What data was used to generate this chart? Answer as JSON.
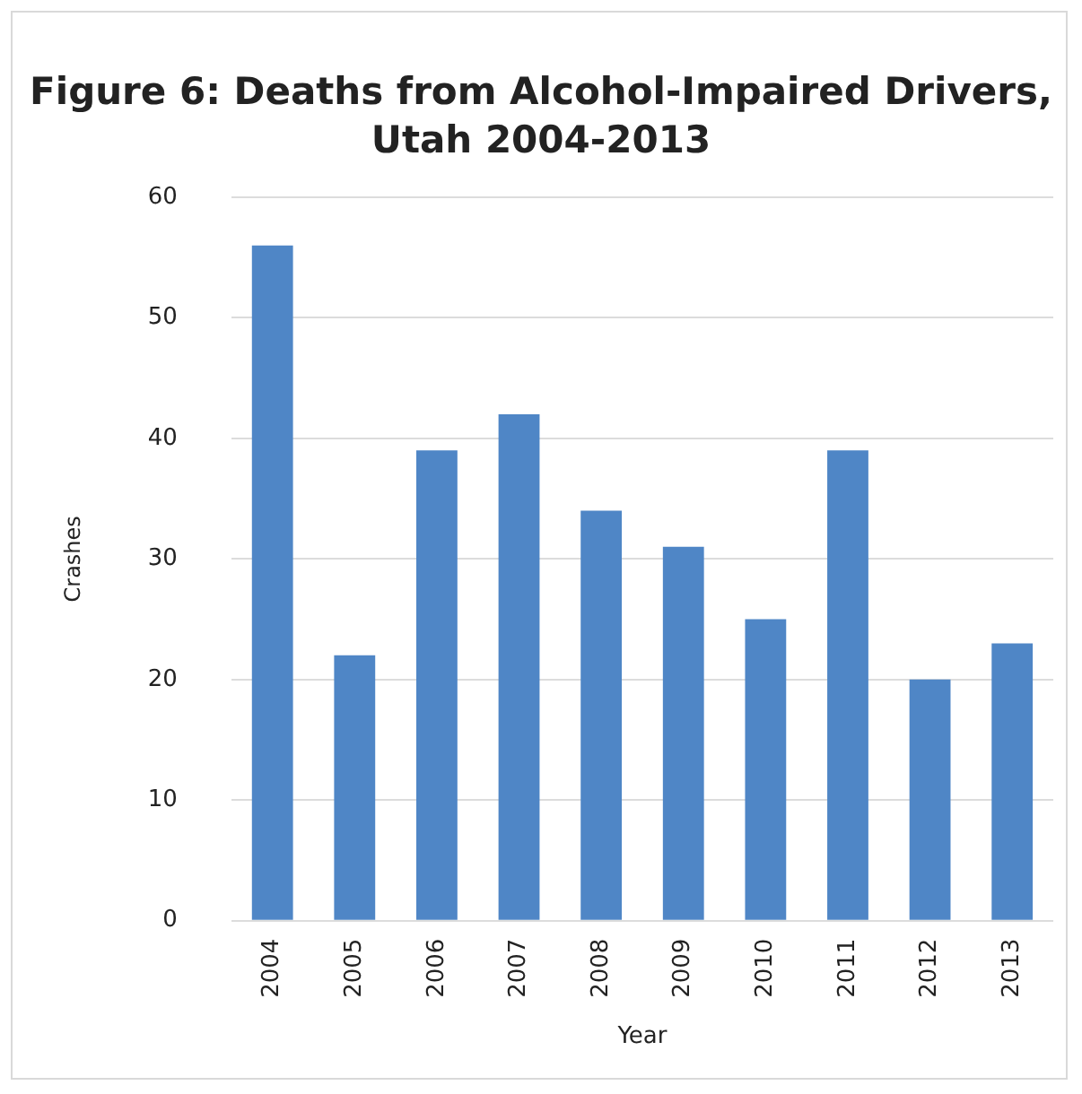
{
  "chart_data": {
    "type": "bar",
    "title": "Figure 6: Deaths from Alcohol-Impaired Drivers, Utah 2004-2013",
    "xlabel": "Year",
    "ylabel": "Crashes",
    "categories": [
      "2004",
      "2005",
      "2006",
      "2007",
      "2008",
      "2009",
      "2010",
      "2011",
      "2012",
      "2013"
    ],
    "values": [
      56,
      22,
      39,
      42,
      34,
      31,
      25,
      39,
      20,
      23
    ],
    "color": "#4f86c6",
    "ylim": [
      0,
      60
    ],
    "yticks": [
      0,
      10,
      20,
      30,
      40,
      50,
      60
    ],
    "grid": "y"
  }
}
